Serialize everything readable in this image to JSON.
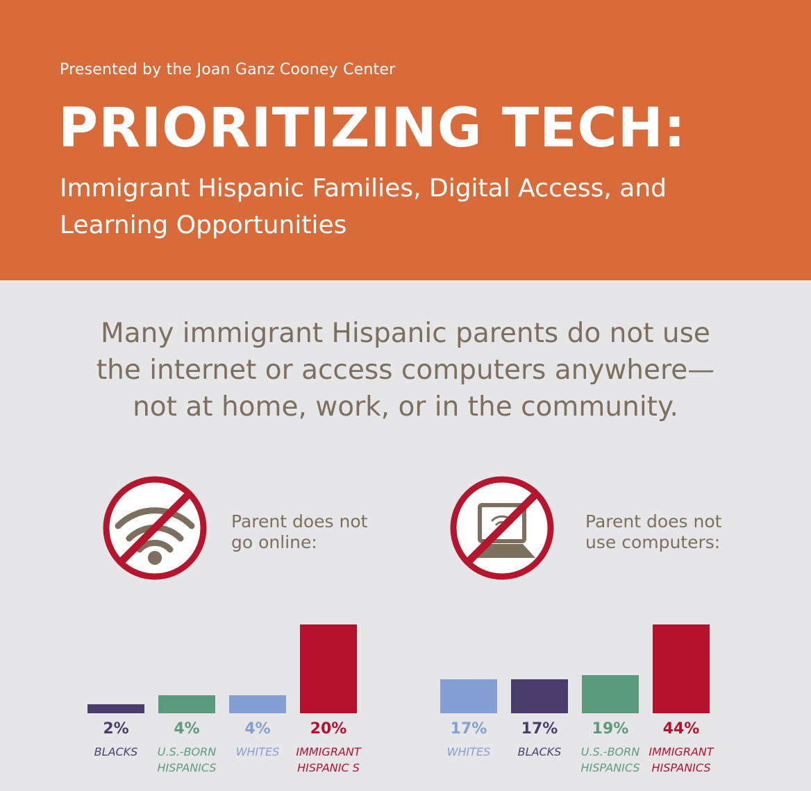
{
  "header": {
    "presented_by": "Presented by the Joan Ganz Cooney Center",
    "title": "PRIORITIZING TECH:",
    "subtitle_line1": "Immigrant Hispanic Families, Digital Access, and",
    "subtitle_line2": "Learning Opportunities"
  },
  "intro": {
    "line1": "Many immigrant Hispanic parents do not use",
    "line2": "the internet or access computers anywhere—",
    "line3": "not at home, work, or in the community."
  },
  "icons": {
    "left": "no-wifi-icon",
    "right": "no-laptop-icon"
  },
  "colors": {
    "header_bg": "#d96b3a",
    "text": "#7d6f5e",
    "prohibit": "#b5162e",
    "blacks": "#4b3d6b",
    "us_born_hispanics": "#5c9a7e",
    "whites": "#849fd3",
    "immigrant_hispanics": "#b5112e"
  },
  "chart_data": [
    {
      "type": "bar",
      "title": "Parent does not go online:",
      "title_line1": "Parent does not",
      "title_line2": "go online:",
      "unit": "%",
      "categories": [
        "BLACKS",
        "U.S.-BORN HISPANICS",
        "WHITES",
        "IMMIGRANT HISPANIC S"
      ],
      "category_lines": [
        [
          "BLACKS"
        ],
        [
          "U.S.-BORN",
          "HISPANICS"
        ],
        [
          "WHITES"
        ],
        [
          "IMMIGRANT",
          "HISPANIC S"
        ]
      ],
      "values": [
        2,
        4,
        4,
        20
      ],
      "labels": [
        "2%",
        "4%",
        "4%",
        "20%"
      ],
      "colors": [
        "#4b3d6b",
        "#5c9a7e",
        "#849fd3",
        "#b5112e"
      ]
    },
    {
      "type": "bar",
      "title": "Parent does not use computers:",
      "title_line1": "Parent does not",
      "title_line2": "use computers:",
      "unit": "%",
      "categories": [
        "WHITES",
        "BLACKS",
        "U.S.-BORN HISPANICS",
        "IMMIGRANT HISPANICS"
      ],
      "category_lines": [
        [
          "WHITES"
        ],
        [
          "BLACKS"
        ],
        [
          "U.S.-BORN",
          "HISPANICS"
        ],
        [
          "IMMIGRANT",
          "HISPANICS"
        ]
      ],
      "values": [
        17,
        17,
        19,
        44
      ],
      "labels": [
        "17%",
        "17%",
        "19%",
        "44%"
      ],
      "colors": [
        "#849fd3",
        "#4b3d6b",
        "#5c9a7e",
        "#b5112e"
      ]
    }
  ]
}
